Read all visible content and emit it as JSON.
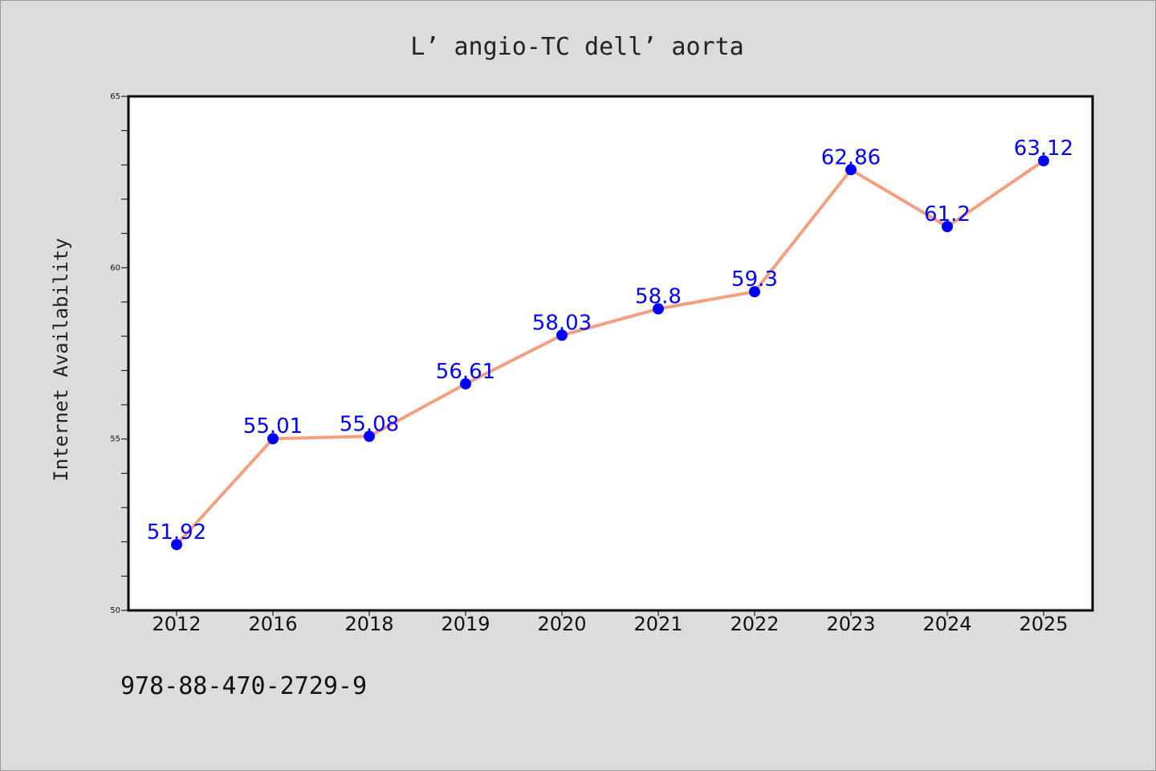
{
  "chart_data": {
    "type": "line",
    "title": "L’ angio-TC dell’ aorta",
    "xlabel": "",
    "ylabel": "Internet Availability",
    "categories": [
      "2012",
      "2016",
      "2018",
      "2019",
      "2020",
      "2021",
      "2022",
      "2023",
      "2024",
      "2025"
    ],
    "series": [
      {
        "values": [
          51.92,
          55.01,
          55.08,
          56.61,
          58.03,
          58.8,
          59.3,
          62.86,
          61.2,
          63.12
        ],
        "labels": [
          "51.92",
          "55.01",
          "55.08",
          "56.61",
          "58.03",
          "58.8",
          "59.3",
          "62.86",
          "61.2",
          "63.12"
        ]
      }
    ],
    "ylim": [
      50,
      65
    ],
    "yticks": [
      "50",
      "55",
      "60",
      "65"
    ],
    "grid": false,
    "legend": "none",
    "line_color": "#f4a07e",
    "marker_color": "#0000ff",
    "label_color": "#0000ff"
  },
  "footer": {
    "isbn": "978-88-470-2729-9"
  }
}
